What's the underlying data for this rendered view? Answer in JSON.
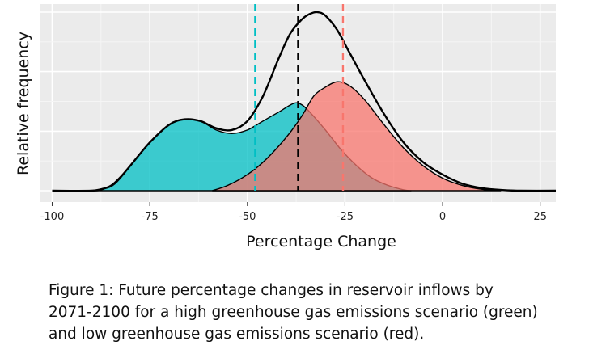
{
  "chart_data": {
    "type": "area",
    "xlabel": "Percentage Change",
    "ylabel": "Relative frequency",
    "xlim": [
      -103,
      29
    ],
    "ylim": [
      0,
      1.0
    ],
    "x_ticks": [
      -100,
      -75,
      -50,
      -25,
      0,
      25
    ],
    "x_tick_labels": [
      "-100",
      "-75",
      "-50",
      "-25",
      "0",
      "25"
    ],
    "grid": true,
    "legend": "none",
    "series": [
      {
        "color": "#00BFC4",
        "x": [
          -90,
          -85,
          -80,
          -75,
          -70,
          -66,
          -62,
          -58,
          -54,
          -50,
          -46,
          -42,
          -38,
          -36,
          -34,
          -30,
          -26,
          -22,
          -18,
          -14,
          -10,
          -8
        ],
        "values": [
          0.0,
          0.03,
          0.14,
          0.27,
          0.37,
          0.4,
          0.39,
          0.34,
          0.32,
          0.34,
          0.39,
          0.44,
          0.49,
          0.48,
          0.44,
          0.34,
          0.23,
          0.14,
          0.07,
          0.03,
          0.005,
          0.0
        ]
      },
      {
        "color": "#F8766D",
        "x": [
          -59,
          -55,
          -50,
          -45,
          -40,
          -36,
          -33,
          -30,
          -27,
          -24,
          -20,
          -15,
          -10,
          -5,
          0,
          5,
          10,
          15
        ],
        "values": [
          0.0,
          0.03,
          0.09,
          0.18,
          0.3,
          0.42,
          0.53,
          0.58,
          0.61,
          0.59,
          0.51,
          0.37,
          0.24,
          0.14,
          0.07,
          0.03,
          0.008,
          0.0
        ]
      },
      {
        "color": "#000000",
        "x": [
          -100,
          -90,
          -87,
          -84,
          -80,
          -75,
          -70,
          -66,
          -62,
          -58,
          -54,
          -50,
          -46,
          -42,
          -39,
          -36,
          -34,
          -32,
          -30,
          -27,
          -24,
          -20,
          -15,
          -10,
          -5,
          0,
          5,
          10,
          15,
          20,
          29
        ],
        "values": [
          0.0,
          0.0,
          0.01,
          0.04,
          0.14,
          0.27,
          0.37,
          0.4,
          0.39,
          0.35,
          0.34,
          0.39,
          0.53,
          0.74,
          0.88,
          0.96,
          0.99,
          1.0,
          0.98,
          0.9,
          0.78,
          0.62,
          0.43,
          0.27,
          0.16,
          0.09,
          0.04,
          0.015,
          0.004,
          0.0,
          0.0
        ]
      }
    ],
    "vlines": [
      {
        "x": -48,
        "color": "#00BFC4"
      },
      {
        "x": -37,
        "color": "#000000"
      },
      {
        "x": -25.5,
        "color": "#F8766D"
      }
    ]
  },
  "caption_lines": [
    "Figure 1: Future percentage changes in reservoir  inflows by",
    "2071-2100 for a high greenhouse gas emissions scenario (green)",
    "and low greenhouse gas emissions scenario (red)."
  ]
}
